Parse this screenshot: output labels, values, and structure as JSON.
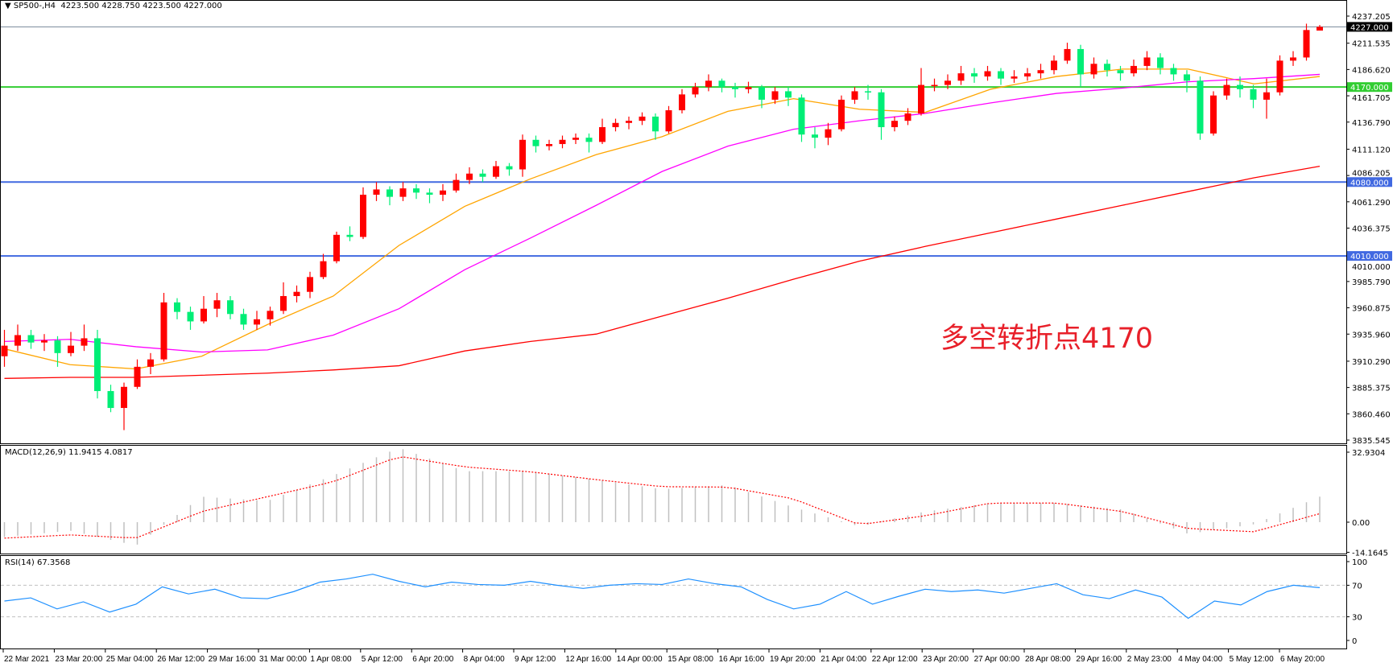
{
  "header": {
    "collapse_glyph": "▼",
    "symbol": "SP500-,H4",
    "ohlc": "4223.500 4228.750 4223.500 4227.000"
  },
  "annotation": "多空转折点4170",
  "macd_label": "MACD(12,26,9) 11.9415 4.0817",
  "rsi_label": "RSI(14) 67.3568",
  "colors": {
    "bull": "#ff0000",
    "bear": "#00ee76",
    "ma_fast": "#ffa500",
    "ma_mid": "#ff00ff",
    "ma_slow": "#ff0000",
    "macd_hist": "#c0c0c0",
    "macd_signal": "#ff0000",
    "rsi": "#1e90ff",
    "annotation": "#e8202a"
  },
  "chart_data": [
    {
      "type": "candlestick",
      "symbol": "SP500-",
      "timeframe": "H4",
      "ylim": [
        3835.545,
        4237.205
      ],
      "price_ticks": [
        "4237.205",
        "4211.535",
        "4186.620",
        "4161.705",
        "4136.790",
        "4111.120",
        "4086.205",
        "4061.290",
        "4036.375",
        "4010.000",
        "3985.790",
        "3960.875",
        "3935.960",
        "3910.290",
        "3885.375",
        "3860.460",
        "3835.545"
      ],
      "levels": [
        {
          "price": 4227.0,
          "label": "4227.000",
          "color": "#778899",
          "badge": "#000000"
        },
        {
          "price": 4170.0,
          "label": "4170.000",
          "color": "#32cd32",
          "badge": "#32cd32"
        },
        {
          "price": 4080.0,
          "label": "4080.000",
          "color": "#4169e1",
          "badge": "#4169e1"
        },
        {
          "price": 4010.0,
          "label": "4010.000",
          "color": "#4169e1",
          "badge": "#4169e1"
        }
      ],
      "time_labels": [
        "22 Mar 2021",
        "23 Mar 20:00",
        "25 Mar 04:00",
        "26 Mar 12:00",
        "29 Mar 16:00",
        "31 Mar 00:00",
        "1 Apr 08:00",
        "5 Apr 12:00",
        "6 Apr 20:00",
        "8 Apr 04:00",
        "9 Apr 12:00",
        "12 Apr 16:00",
        "14 Apr 00:00",
        "15 Apr 08:00",
        "16 Apr 16:00",
        "19 Apr 20:00",
        "21 Apr 04:00",
        "22 Apr 12:00",
        "23 Apr 20:00",
        "27 Apr 00:00",
        "28 Apr 08:00",
        "29 Apr 16:00",
        "2 May 23:00",
        "4 May 04:00",
        "5 May 12:00",
        "6 May 20:00"
      ],
      "ohlc": [
        [
          3915,
          3940,
          3905,
          3925
        ],
        [
          3925,
          3945,
          3920,
          3935
        ],
        [
          3935,
          3940,
          3922,
          3928
        ],
        [
          3928,
          3936,
          3920,
          3930
        ],
        [
          3930,
          3934,
          3905,
          3918
        ],
        [
          3918,
          3938,
          3915,
          3925
        ],
        [
          3925,
          3945,
          3920,
          3932
        ],
        [
          3932,
          3940,
          3875,
          3882
        ],
        [
          3882,
          3888,
          3862,
          3866
        ],
        [
          3866,
          3890,
          3845,
          3886
        ],
        [
          3886,
          3912,
          3884,
          3905
        ],
        [
          3905,
          3918,
          3898,
          3912
        ],
        [
          3912,
          3975,
          3910,
          3966
        ],
        [
          3966,
          3970,
          3950,
          3957
        ],
        [
          3957,
          3962,
          3940,
          3948
        ],
        [
          3948,
          3972,
          3946,
          3960
        ],
        [
          3960,
          3975,
          3952,
          3968
        ],
        [
          3968,
          3972,
          3950,
          3955
        ],
        [
          3955,
          3960,
          3940,
          3945
        ],
        [
          3945,
          3958,
          3940,
          3950
        ],
        [
          3950,
          3962,
          3944,
          3958
        ],
        [
          3958,
          3985,
          3955,
          3972
        ],
        [
          3972,
          3982,
          3966,
          3976
        ],
        [
          3976,
          3995,
          3970,
          3990
        ],
        [
          3990,
          4012,
          3988,
          4005
        ],
        [
          4005,
          4033,
          4003,
          4030
        ],
        [
          4030,
          4038,
          4024,
          4028
        ],
        [
          4028,
          4075,
          4026,
          4068
        ],
        [
          4068,
          4080,
          4062,
          4073
        ],
        [
          4073,
          4076,
          4058,
          4066
        ],
        [
          4066,
          4080,
          4062,
          4074
        ],
        [
          4074,
          4078,
          4064,
          4070
        ],
        [
          4070,
          4074,
          4060,
          4068
        ],
        [
          4068,
          4078,
          4062,
          4072
        ],
        [
          4072,
          4088,
          4070,
          4082
        ],
        [
          4082,
          4094,
          4078,
          4088
        ],
        [
          4088,
          4092,
          4080,
          4085
        ],
        [
          4085,
          4100,
          4083,
          4095
        ],
        [
          4095,
          4098,
          4086,
          4092
        ],
        [
          4092,
          4125,
          4085,
          4120
        ],
        [
          4120,
          4124,
          4108,
          4114
        ],
        [
          4114,
          4120,
          4110,
          4116
        ],
        [
          4116,
          4124,
          4112,
          4120
        ],
        [
          4120,
          4126,
          4116,
          4122
        ],
        [
          4122,
          4126,
          4108,
          4118
        ],
        [
          4118,
          4140,
          4116,
          4132
        ],
        [
          4132,
          4140,
          4128,
          4136
        ],
        [
          4136,
          4142,
          4130,
          4138
        ],
        [
          4138,
          4146,
          4134,
          4142
        ],
        [
          4142,
          4145,
          4120,
          4128
        ],
        [
          4128,
          4152,
          4126,
          4148
        ],
        [
          4148,
          4168,
          4145,
          4163
        ],
        [
          4163,
          4174,
          4160,
          4170
        ],
        [
          4170,
          4182,
          4166,
          4176
        ],
        [
          4176,
          4178,
          4165,
          4170
        ],
        [
          4170,
          4174,
          4160,
          4168
        ],
        [
          4168,
          4175,
          4164,
          4170
        ],
        [
          4170,
          4172,
          4150,
          4158
        ],
        [
          4158,
          4170,
          4154,
          4166
        ],
        [
          4166,
          4170,
          4152,
          4160
        ],
        [
          4160,
          4163,
          4118,
          4125
        ],
        [
          4125,
          4132,
          4112,
          4122
        ],
        [
          4122,
          4136,
          4115,
          4130
        ],
        [
          4130,
          4162,
          4128,
          4158
        ],
        [
          4158,
          4170,
          4154,
          4166
        ],
        [
          4166,
          4172,
          4158,
          4165
        ],
        [
          4165,
          4168,
          4120,
          4132
        ],
        [
          4132,
          4142,
          4128,
          4138
        ],
        [
          4138,
          4150,
          4134,
          4145
        ],
        [
          4145,
          4188,
          4143,
          4172
        ],
        [
          4172,
          4178,
          4166,
          4172
        ],
        [
          4172,
          4182,
          4168,
          4176
        ],
        [
          4176,
          4190,
          4172,
          4183
        ],
        [
          4183,
          4188,
          4174,
          4180
        ],
        [
          4180,
          4190,
          4176,
          4185
        ],
        [
          4185,
          4188,
          4172,
          4178
        ],
        [
          4178,
          4186,
          4174,
          4180
        ],
        [
          4180,
          4188,
          4176,
          4183
        ],
        [
          4183,
          4192,
          4178,
          4186
        ],
        [
          4186,
          4200,
          4182,
          4195
        ],
        [
          4195,
          4212,
          4192,
          4206
        ],
        [
          4206,
          4210,
          4170,
          4182
        ],
        [
          4182,
          4198,
          4178,
          4192
        ],
        [
          4192,
          4196,
          4180,
          4186
        ],
        [
          4186,
          4190,
          4176,
          4183
        ],
        [
          4183,
          4196,
          4180,
          4190
        ],
        [
          4190,
          4204,
          4186,
          4198
        ],
        [
          4198,
          4202,
          4182,
          4188
        ],
        [
          4188,
          4192,
          4176,
          4182
        ],
        [
          4182,
          4186,
          4165,
          4176
        ],
        [
          4176,
          4180,
          4120,
          4126
        ],
        [
          4126,
          4166,
          4124,
          4162
        ],
        [
          4162,
          4178,
          4158,
          4172
        ],
        [
          4172,
          4180,
          4160,
          4168
        ],
        [
          4168,
          4172,
          4150,
          4158
        ],
        [
          4158,
          4178,
          4140,
          4165
        ],
        [
          4165,
          4200,
          4162,
          4195
        ],
        [
          4195,
          4204,
          4190,
          4198
        ],
        [
          4198,
          4230,
          4195,
          4224
        ],
        [
          4223.5,
          4228.75,
          4223.5,
          4227
        ]
      ],
      "moving_averages": [
        {
          "color": "#ffa500",
          "values": [
            3922,
            3907,
            3903,
            3915,
            3945,
            3972,
            4020,
            4057,
            4083,
            4106,
            4123,
            4147,
            4159,
            4149,
            4146,
            4168,
            4180,
            4187,
            4187,
            4173,
            4180
          ]
        },
        {
          "color": "#ff00ff",
          "values": [
            3929,
            3931,
            3924,
            3919,
            3921,
            3935,
            3960,
            3997,
            4027,
            4058,
            4090,
            4114,
            4130,
            4138,
            4145,
            4155,
            4164,
            4169,
            4175,
            4178,
            4182
          ]
        },
        {
          "color": "#ff0000",
          "values": [
            3894,
            3895,
            3895,
            3897,
            3899,
            3902,
            3906,
            3920,
            3929,
            3936,
            3953,
            3970,
            3988,
            4005,
            4019,
            4032,
            4045,
            4058,
            4071,
            4084,
            4095
          ]
        }
      ]
    },
    {
      "type": "bar",
      "title": "MACD(12,26,9) 11.9415 4.0817",
      "ylim": [
        -14.1645,
        32.9304
      ],
      "ticks": [
        "32.9304",
        "0.00",
        "-14.1645"
      ],
      "macd": [
        -7,
        -4,
        -11,
        12,
        10,
        22,
        35,
        24,
        24,
        20,
        15.5,
        17.5,
        7,
        -2,
        5,
        9,
        9,
        6,
        -5.5,
        -1,
        12
      ],
      "signal": [
        -7.5,
        -6,
        -7.5,
        5,
        12,
        19,
        31,
        26,
        23.7,
        20,
        16.7,
        16.5,
        11,
        -1.2,
        3,
        9,
        9,
        5,
        -3,
        -4.5,
        4
      ]
    },
    {
      "type": "line",
      "title": "RSI(14) 67.3568",
      "ylim": [
        0,
        100
      ],
      "ticks": [
        "100",
        "70",
        "30",
        "0"
      ],
      "levels": [
        70,
        30
      ],
      "values": [
        50,
        54,
        40,
        49,
        36,
        46,
        68,
        59,
        65,
        54,
        53,
        62,
        74,
        78,
        84,
        75,
        68,
        74,
        71,
        70,
        75,
        70,
        66,
        70,
        72,
        71,
        78,
        72,
        68,
        52,
        40,
        46,
        62,
        46,
        56,
        65,
        62,
        64,
        60,
        66,
        72,
        58,
        53,
        64,
        55,
        28,
        50,
        45,
        62,
        70,
        67
      ]
    }
  ]
}
